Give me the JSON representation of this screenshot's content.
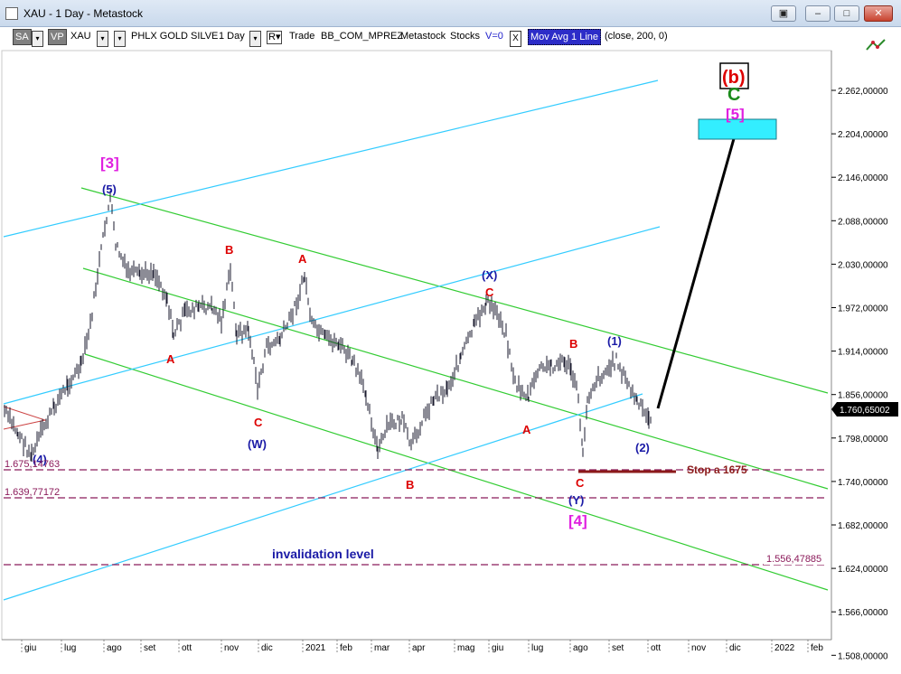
{
  "window": {
    "title": "XAU - 1 Day - Metastock",
    "buttons": [
      "restore",
      "minimize",
      "maximize",
      "close"
    ]
  },
  "toolbar": {
    "sa": "SA",
    "vp": "VP",
    "symbol": "XAU",
    "name": "PHLX GOLD SILVE",
    "period": "1 Day",
    "r": "R▾",
    "trade": "Trade",
    "template": "BB_COM_MPREZ",
    "source": "Metastock",
    "group": "Stocks",
    "v": "V=0",
    "x": "X",
    "indicator": "Mov Avg 1 Line",
    "params": "(close,  200,  0)"
  },
  "y_axis": {
    "ticks": [
      "2.262,00000",
      "2.204,00000",
      "2.146,00000",
      "2.088,00000",
      "2.030,00000",
      "1.972,00000",
      "1.914,00000",
      "1.856,00000",
      "1.798,00000",
      "1.740,00000",
      "1.682,00000",
      "1.624,00000",
      "1.566,00000",
      "1.508,00000"
    ],
    "last_price": "1.760,65002"
  },
  "x_axis": {
    "ticks": [
      "giu",
      "lug",
      "ago",
      "set",
      "ott",
      "nov",
      "dic",
      "2021",
      "feb",
      "mar",
      "apr",
      "mag",
      "giu",
      "lug",
      "ago",
      "set",
      "ott",
      "nov",
      "dic",
      "2022",
      "feb"
    ]
  },
  "levels": {
    "left_a": "1.675,14763",
    "left_b": "1.639,77172",
    "right": "1.556,47885"
  },
  "annotations": {
    "wave3": "[3]",
    "wave5": "(5)",
    "wave4_left": "(4)",
    "B1": "B",
    "A1": "A",
    "A2": "A",
    "C1": "C",
    "W": "(W)",
    "B2": "B",
    "X": "(X)",
    "C2": "C",
    "B3": "B",
    "A3": "A",
    "C3": "C",
    "Y": "(Y)",
    "wave4": "[4]",
    "w1": "(1)",
    "w2": "(2)",
    "stop": "Stop a 1675",
    "invalidation": "invalidation level",
    "b_box": "(b)",
    "c_green": "C",
    "wave5_target": "[5]"
  },
  "colors": {
    "channel_green": "#33cc33",
    "channel_cyan": "#33ccff",
    "price_bars": "#1a1a2e",
    "wave_red": "#dd0000",
    "wave_blue": "#1a1aa6",
    "wave_magenta": "#e020e0",
    "target_box": "#33eeff",
    "level_line": "#8b1a5a"
  }
}
